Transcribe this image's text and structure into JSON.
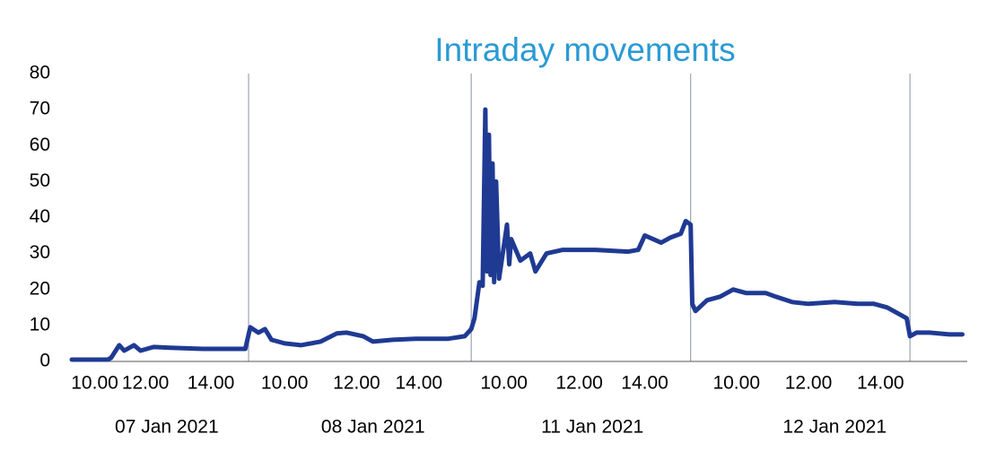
{
  "chart_data": {
    "type": "line",
    "title": "Intraday movements",
    "x": [
      0,
      1.1,
      1.2,
      1.45,
      1.6,
      1.9,
      2.1,
      2.5,
      3,
      4,
      5.3,
      5.45,
      5.7,
      5.9,
      6.1,
      6.5,
      7,
      7.6,
      8.1,
      8.4,
      8.9,
      9.2,
      9.8,
      10.5,
      11.5,
      12,
      12.2,
      12.3,
      12.45,
      12.55,
      12.63,
      12.68,
      12.74,
      12.79,
      12.85,
      12.9,
      12.96,
      13.05,
      13.29,
      13.36,
      13.42,
      13.7,
      14.0,
      14.16,
      14.5,
      15,
      16,
      17,
      17.3,
      17.5,
      18,
      18.3,
      18.6,
      18.75,
      18.9,
      18.95,
      19.05,
      19.4,
      19.8,
      20.2,
      20.6,
      21.2,
      21.5,
      22,
      22.5,
      23.3,
      24,
      24.5,
      24.9,
      25.3,
      25.5,
      25.6,
      25.8,
      26.2,
      26.8,
      27.2
    ],
    "series": [
      {
        "color": "#1f3a93",
        "values": [
          0.5,
          0.5,
          1,
          4.5,
          3,
          4.5,
          3,
          4,
          3.8,
          3.5,
          3.5,
          9.5,
          8,
          9,
          6,
          5,
          4.5,
          5.5,
          7.8,
          8,
          7,
          5.5,
          6,
          6.3,
          6.3,
          7,
          9,
          12,
          22,
          21,
          70,
          25,
          63,
          24,
          55,
          22,
          50,
          23,
          38,
          27,
          34,
          28,
          30,
          25,
          30,
          31,
          31,
          30.5,
          31,
          35,
          33,
          34.5,
          35.5,
          39,
          38,
          16,
          14,
          17,
          18,
          20,
          19,
          19,
          18,
          16.5,
          16,
          16.5,
          16,
          16,
          15,
          13,
          12,
          7,
          8,
          8,
          7.5,
          7.5
        ]
      }
    ],
    "xlim": [
      0,
      27.35
    ],
    "xticks": [
      {
        "value": 0.7,
        "label": "10.00"
      },
      {
        "value": 2.25,
        "label": "12.00"
      },
      {
        "value": 4.25,
        "label": "14.00"
      },
      {
        "value": 6.5,
        "label": "10.00"
      },
      {
        "value": 8.7,
        "label": "12.00"
      },
      {
        "value": 10.6,
        "label": "14.00"
      },
      {
        "value": 13.2,
        "label": "10.00"
      },
      {
        "value": 15.5,
        "label": "12.00"
      },
      {
        "value": 17.5,
        "label": "14.00"
      },
      {
        "value": 20.3,
        "label": "10.00"
      },
      {
        "value": 22.5,
        "label": "12.00"
      },
      {
        "value": 24.7,
        "label": "14.00"
      }
    ],
    "x_groups": [
      {
        "label": "07 Jan 2021",
        "x": 2.9
      },
      {
        "label": "08 Jan 2021",
        "x": 9.2
      },
      {
        "label": "11 Jan 2021",
        "x": 15.9
      },
      {
        "label": "12 Jan 2021",
        "x": 23.3
      }
    ],
    "separators": [
      5.4,
      12.2,
      18.9,
      25.6
    ],
    "ylim": [
      0,
      80
    ],
    "yticks": [
      0,
      10,
      20,
      30,
      40,
      50,
      60,
      70,
      80
    ]
  }
}
